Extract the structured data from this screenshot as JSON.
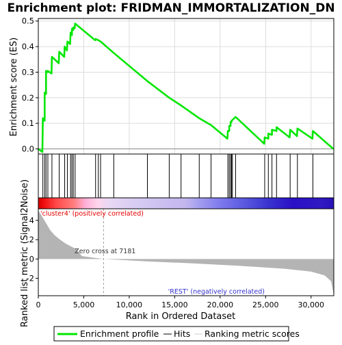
{
  "chart_data": {
    "type": "line",
    "title": "Enrichment plot: FRIDMAN_IMMORTALIZATION_DN",
    "xlabel": "Rank in Ordered Dataset",
    "top_ylabel": "Enrichment score (ES)",
    "bottom_ylabel": "Ranked list metric (Signal2Noise)",
    "x_range": [
      0,
      32500
    ],
    "es_ylim": [
      -0.02,
      0.51
    ],
    "metric_ylim": [
      -3.8,
      5.2
    ],
    "x_ticks": [
      0,
      5000,
      10000,
      15000,
      20000,
      25000,
      30000
    ],
    "x_tick_labels": [
      "0",
      "5,000",
      "10,000",
      "15,000",
      "20,000",
      "25,000",
      "30,000"
    ],
    "es_ticks": [
      0.0,
      0.1,
      0.2,
      0.3,
      0.4,
      0.5
    ],
    "es_tick_labels": [
      "0.0",
      "0.1",
      "0.2",
      "0.3",
      "0.4",
      "0.5"
    ],
    "metric_ticks": [
      4,
      2,
      0,
      -2
    ],
    "metric_tick_labels": [
      "4",
      "2",
      "0",
      "-2"
    ],
    "hits": [
      500,
      700,
      850,
      1050,
      1500,
      2300,
      2900,
      3200,
      3550,
      3700,
      3850,
      4050,
      6300,
      6600,
      6850,
      8300,
      12000,
      14400,
      15700,
      17700,
      19000,
      20850,
      21000,
      21150,
      21250,
      21350,
      21700,
      24900,
      25300,
      25700,
      26200,
      27700,
      28500,
      30200
    ],
    "es_profile": [
      [
        0,
        0.0
      ],
      [
        450,
        -0.012
      ],
      [
        500,
        0.12
      ],
      [
        700,
        0.11
      ],
      [
        700,
        0.22
      ],
      [
        850,
        0.215
      ],
      [
        850,
        0.305
      ],
      [
        1050,
        0.3
      ],
      [
        1050,
        0.305
      ],
      [
        1450,
        0.295
      ],
      [
        1500,
        0.36
      ],
      [
        2250,
        0.335
      ],
      [
        2300,
        0.38
      ],
      [
        2850,
        0.36
      ],
      [
        2900,
        0.4
      ],
      [
        3150,
        0.385
      ],
      [
        3200,
        0.42
      ],
      [
        3500,
        0.41
      ],
      [
        3550,
        0.455
      ],
      [
        3700,
        0.445
      ],
      [
        3700,
        0.47
      ],
      [
        3850,
        0.465
      ],
      [
        3850,
        0.475
      ],
      [
        4000,
        0.472
      ],
      [
        4050,
        0.49
      ],
      [
        6250,
        0.425
      ],
      [
        6300,
        0.43
      ],
      [
        6600,
        0.425
      ],
      [
        6850,
        0.42
      ],
      [
        8300,
        0.375
      ],
      [
        12000,
        0.265
      ],
      [
        14400,
        0.2
      ],
      [
        15700,
        0.17
      ],
      [
        17700,
        0.12
      ],
      [
        19000,
        0.093
      ],
      [
        20800,
        0.04
      ],
      [
        20850,
        0.07
      ],
      [
        21000,
        0.07
      ],
      [
        21000,
        0.09
      ],
      [
        21150,
        0.09
      ],
      [
        21150,
        0.105
      ],
      [
        21250,
        0.105
      ],
      [
        21250,
        0.11
      ],
      [
        21700,
        0.125
      ],
      [
        24850,
        0.02
      ],
      [
        24900,
        0.045
      ],
      [
        25300,
        0.04
      ],
      [
        25300,
        0.06
      ],
      [
        25700,
        0.055
      ],
      [
        25700,
        0.075
      ],
      [
        26200,
        0.07
      ],
      [
        26200,
        0.085
      ],
      [
        27650,
        0.045
      ],
      [
        27700,
        0.075
      ],
      [
        28450,
        0.05
      ],
      [
        28500,
        0.08
      ],
      [
        30150,
        0.04
      ],
      [
        30200,
        0.07
      ],
      [
        32450,
        0.0
      ]
    ],
    "metric_profile": [
      [
        0,
        5.0
      ],
      [
        300,
        4.6
      ],
      [
        800,
        3.8
      ],
      [
        1300,
        3.0
      ],
      [
        1800,
        2.45
      ],
      [
        2400,
        2.0
      ],
      [
        3000,
        1.6
      ],
      [
        3600,
        1.3
      ],
      [
        4200,
        1.0
      ],
      [
        4800,
        0.3
      ],
      [
        7181,
        0.0
      ],
      [
        12000,
        -0.25
      ],
      [
        17000,
        -0.45
      ],
      [
        22000,
        -0.7
      ],
      [
        27000,
        -1.0
      ],
      [
        30000,
        -1.3
      ],
      [
        31500,
        -1.7
      ],
      [
        32200,
        -2.3
      ],
      [
        32500,
        -3.7
      ]
    ],
    "heatbar_stops": [
      [
        0.0,
        "#d60000"
      ],
      [
        0.02,
        "#f01010"
      ],
      [
        0.06,
        "#ff4848"
      ],
      [
        0.12,
        "#ff7e7e"
      ],
      [
        0.16,
        "#ffb0d8"
      ],
      [
        0.2,
        "#ffd4ec"
      ],
      [
        0.24,
        "#e8d8f4"
      ],
      [
        0.36,
        "#d2c8f2"
      ],
      [
        0.5,
        "#c2b6ee"
      ],
      [
        0.54,
        "#a6a0f0"
      ],
      [
        0.62,
        "#7c78ec"
      ],
      [
        0.7,
        "#5858de"
      ],
      [
        0.78,
        "#3a32d0"
      ],
      [
        0.86,
        "#2a10c6"
      ],
      [
        0.96,
        "#3018c2"
      ],
      [
        1.0,
        "#2810b8"
      ]
    ],
    "zero_cross_label": "Zero cross at 7181",
    "zero_cross_x": 7181,
    "pos_label": "'cluster4' (positively correlated)",
    "neg_label": "'REST' (negatively correlated)",
    "legend": {
      "items": [
        "Enrichment profile",
        "Hits",
        "Ranking metric scores"
      ],
      "placement": "bottom"
    },
    "colors": {
      "es_line": "#00e600",
      "hit_line": "#000000",
      "metric_fill": "#b4b4b4",
      "pos_label": "#e60000",
      "neg_label": "#3333cc",
      "frame": "#000000",
      "grid": "#dcdcdc"
    }
  }
}
